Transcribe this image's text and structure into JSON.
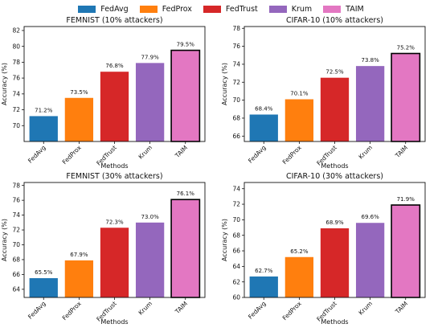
{
  "legend": [
    {
      "label": "FedAvg",
      "color": "#1f77b4"
    },
    {
      "label": "FedProx",
      "color": "#ff7f0e"
    },
    {
      "label": "FedTrust",
      "color": "#d62728"
    },
    {
      "label": "Krum",
      "color": "#9467bd"
    },
    {
      "label": "TAIM",
      "color": "#e377c2"
    }
  ],
  "chart_data": [
    {
      "type": "bar",
      "title": "FEMNIST (10% attackers)",
      "xlabel": "Methods",
      "ylabel": "Accuracy (%)",
      "categories": [
        "FedAvg",
        "FedProx",
        "FedTrust",
        "Krum",
        "TAIM"
      ],
      "values": [
        71.2,
        73.5,
        76.8,
        77.9,
        79.5
      ],
      "data_labels": [
        "71.2%",
        "73.5%",
        "76.8%",
        "77.9%",
        "79.5%"
      ],
      "colors": [
        "#1f77b4",
        "#ff7f0e",
        "#d62728",
        "#9467bd",
        "#e377c2"
      ],
      "ylim": [
        68,
        82.5
      ],
      "yticks": [
        70,
        72,
        74,
        76,
        78,
        80,
        82
      ],
      "grid": false,
      "highlight_index": 4
    },
    {
      "type": "bar",
      "title": "CIFAR-10 (10% attackers)",
      "xlabel": "Methods",
      "ylabel": "Accuracy (%)",
      "categories": [
        "FedAvg",
        "FedProx",
        "FedTrust",
        "Krum",
        "TAIM"
      ],
      "values": [
        68.4,
        70.1,
        72.5,
        73.8,
        75.2
      ],
      "data_labels": [
        "68.4%",
        "70.1%",
        "72.5%",
        "73.8%",
        "75.2%"
      ],
      "colors": [
        "#1f77b4",
        "#ff7f0e",
        "#d62728",
        "#9467bd",
        "#e377c2"
      ],
      "ylim": [
        65.4,
        78.2
      ],
      "yticks": [
        66,
        68,
        70,
        72,
        74,
        76,
        78
      ],
      "grid": false,
      "highlight_index": 4
    },
    {
      "type": "bar",
      "title": "FEMNIST (30% attackers)",
      "xlabel": "Methods",
      "ylabel": "Accuracy (%)",
      "categories": [
        "FedAvg",
        "FedProx",
        "FedTrust",
        "Krum",
        "TAIM"
      ],
      "values": [
        65.5,
        67.9,
        72.3,
        73.0,
        76.1
      ],
      "data_labels": [
        "65.5%",
        "67.9%",
        "72.3%",
        "73.0%",
        "76.1%"
      ],
      "colors": [
        "#1f77b4",
        "#ff7f0e",
        "#d62728",
        "#9467bd",
        "#e377c2"
      ],
      "ylim": [
        62.9,
        78.4
      ],
      "yticks": [
        64,
        66,
        68,
        70,
        72,
        74,
        76,
        78
      ],
      "grid": false,
      "highlight_index": 4
    },
    {
      "type": "bar",
      "title": "CIFAR-10 (30% attackers)",
      "xlabel": "Methods",
      "ylabel": "Accuracy (%)",
      "categories": [
        "FedAvg",
        "FedProx",
        "FedTrust",
        "Krum",
        "TAIM"
      ],
      "values": [
        62.7,
        65.2,
        68.9,
        69.6,
        71.9
      ],
      "data_labels": [
        "62.7%",
        "65.2%",
        "68.9%",
        "69.6%",
        "71.9%"
      ],
      "colors": [
        "#1f77b4",
        "#ff7f0e",
        "#d62728",
        "#9467bd",
        "#e377c2"
      ],
      "ylim": [
        60,
        74.8
      ],
      "yticks": [
        60,
        62,
        64,
        66,
        68,
        70,
        72,
        74
      ],
      "grid": false,
      "highlight_index": 4
    }
  ]
}
